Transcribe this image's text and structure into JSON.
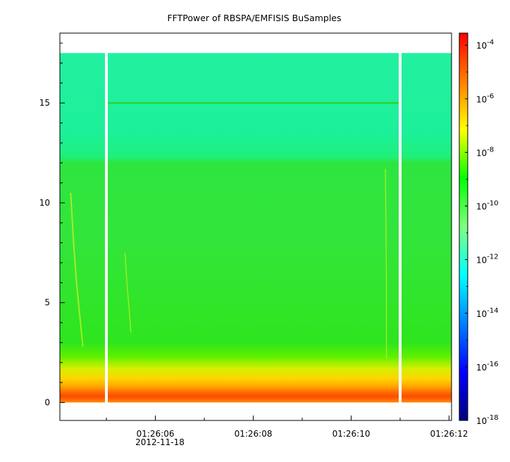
{
  "chart_data": {
    "type": "heatmap",
    "title": "FFTPower of RBSPA/EMFISIS  BuSamples",
    "xlabel": "",
    "ylabel": "",
    "x_ticks": [
      {
        "label": "01:26:06",
        "t": 6
      },
      {
        "label": "01:26:08",
        "t": 8
      },
      {
        "label": "01:26:10",
        "t": 10
      },
      {
        "label": "01:26:12",
        "t": 12
      }
    ],
    "x_minor_ticks": [
      5,
      7,
      9,
      11
    ],
    "x_date_label": "2012-11-18",
    "xlim": [
      4.05,
      12.05
    ],
    "y_ticks": [
      {
        "label": "0",
        "v": 0
      },
      {
        "label": "5",
        "v": 5
      },
      {
        "label": "10",
        "v": 10
      },
      {
        "label": "15",
        "v": 15
      }
    ],
    "ylim": [
      -0.9,
      18.5
    ],
    "data_ymax": 17.5,
    "colorbar": {
      "scale": "log",
      "range_exp": [
        -18,
        -3.55
      ],
      "tick_exps": [
        -4,
        -6,
        -8,
        -10,
        -12,
        -14,
        -16,
        -18
      ],
      "tick_base": "10",
      "colors": [
        "#00007f",
        "#0000ff",
        "#007fff",
        "#00ffff",
        "#7fff7f",
        "#00ff00",
        "#ffff00",
        "#ff7f00",
        "#ff0000"
      ]
    },
    "gaps_time": [
      5.0,
      11.0
    ],
    "hline_freq": 15.0,
    "band_edge_freq": 12.2
  }
}
